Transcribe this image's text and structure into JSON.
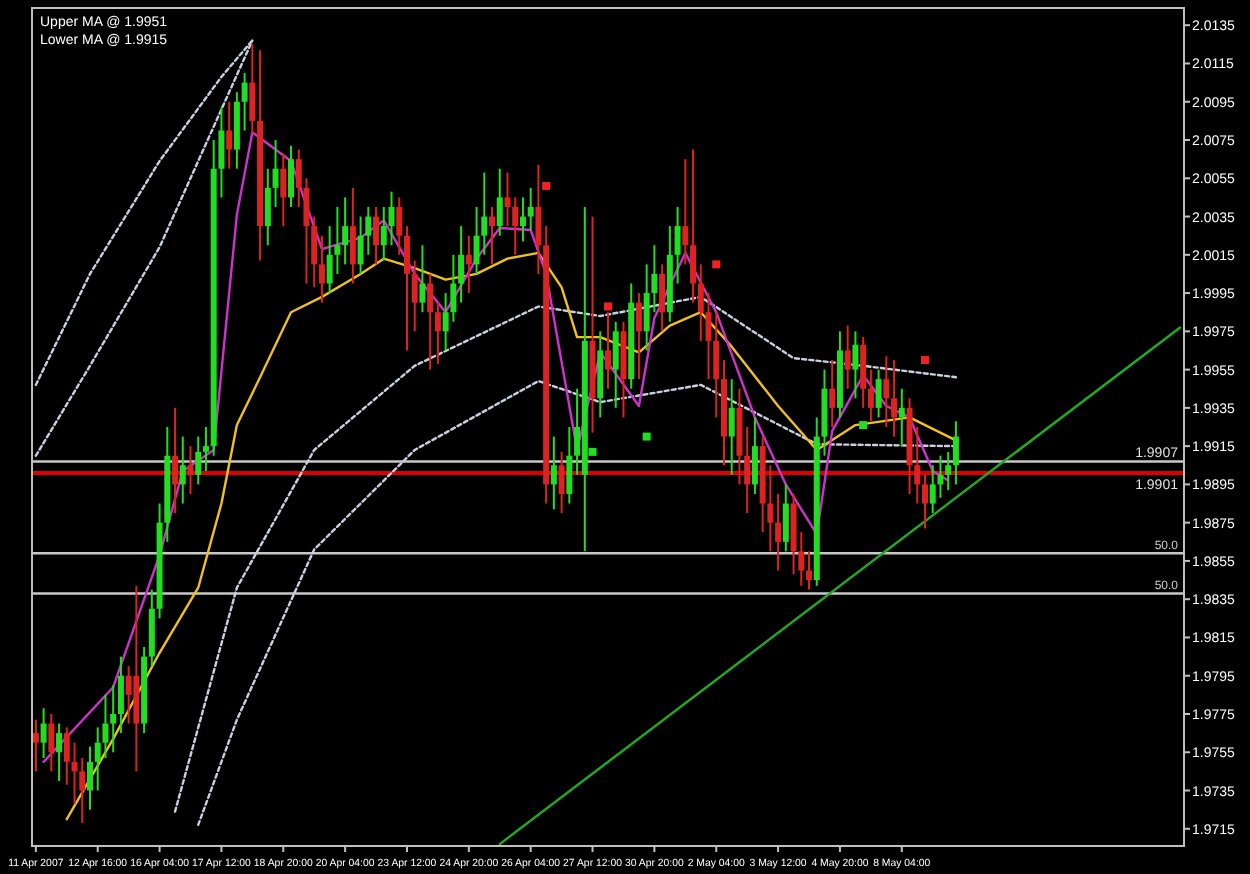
{
  "chart_data": {
    "type": "candlestick",
    "annotations": [
      "Upper MA @ 1.9951",
      "Lower MA @ 1.9915",
      {
        "text": "50.0",
        "y": 1.9859
      },
      {
        "text": "50.0",
        "y": 1.9838
      }
    ],
    "categories": [
      "11 Apr 2007",
      null,
      null,
      null,
      null,
      null,
      null,
      null,
      "12 Apr 16:00",
      null,
      null,
      null,
      null,
      null,
      null,
      null,
      "16 Apr 04:00",
      null,
      null,
      null,
      null,
      null,
      null,
      null,
      "17 Apr 12:00",
      null,
      null,
      null,
      null,
      null,
      null,
      null,
      "18 Apr 20:00",
      null,
      null,
      null,
      null,
      null,
      null,
      null,
      "20 Apr 04:00",
      null,
      null,
      null,
      null,
      null,
      null,
      null,
      "23 Apr 12:00",
      null,
      null,
      null,
      null,
      null,
      null,
      null,
      "24 Apr 20:00",
      null,
      null,
      null,
      null,
      null,
      null,
      null,
      "26 Apr 04:00",
      null,
      null,
      null,
      null,
      null,
      null,
      null,
      "27 Apr 12:00",
      null,
      null,
      null,
      null,
      null,
      null,
      null,
      "30 Apr 20:00",
      null,
      null,
      null,
      null,
      null,
      null,
      null,
      "2 May 04:00",
      null,
      null,
      null,
      null,
      null,
      null,
      null,
      "3 May 12:00",
      null,
      null,
      null,
      null,
      null,
      null,
      null,
      "4 May 20:00",
      null,
      null,
      null,
      null,
      null,
      null,
      null,
      "8 May 04:00",
      null,
      null,
      null,
      null,
      null,
      null,
      null,
      null,
      null,
      null,
      null,
      null,
      null,
      null,
      null,
      null,
      null,
      null,
      null,
      null,
      null,
      null,
      null,
      null,
      null,
      null,
      null,
      null,
      null,
      null,
      null,
      null,
      null,
      null,
      null,
      null
    ],
    "ohlc": [
      [
        1.9765,
        1.9772,
        1.9745,
        1.976
      ],
      [
        1.976,
        1.9778,
        1.9752,
        1.977
      ],
      [
        1.977,
        1.9775,
        1.9745,
        1.9755
      ],
      [
        1.9755,
        1.977,
        1.974,
        1.9765
      ],
      [
        1.9765,
        1.9768,
        1.9738,
        1.975
      ],
      [
        1.975,
        1.976,
        1.9728,
        1.9745
      ],
      [
        1.9745,
        1.9752,
        1.9718,
        1.9735
      ],
      [
        1.9735,
        1.9758,
        1.9725,
        1.975
      ],
      [
        1.975,
        1.9768,
        1.9735,
        1.976
      ],
      [
        1.976,
        1.9785,
        1.9752,
        1.977
      ],
      [
        1.977,
        1.979,
        1.9755,
        1.9775
      ],
      [
        1.9775,
        1.9805,
        1.9765,
        1.9795
      ],
      [
        1.9795,
        1.98,
        1.977,
        1.9785
      ],
      [
        1.9795,
        1.9842,
        1.9745,
        1.977
      ],
      [
        1.977,
        1.981,
        1.9765,
        1.9805
      ],
      [
        1.9805,
        1.984,
        1.98,
        1.983
      ],
      [
        1.983,
        1.9885,
        1.9825,
        1.9875
      ],
      [
        1.9875,
        1.9925,
        1.9865,
        1.991
      ],
      [
        1.991,
        1.9935,
        1.988,
        1.9895
      ],
      [
        1.9895,
        1.992,
        1.9885,
        1.9905
      ],
      [
        1.9905,
        1.9915,
        1.989,
        1.99
      ],
      [
        1.99,
        1.992,
        1.9895,
        1.9912
      ],
      [
        1.9912,
        1.9925,
        1.9902,
        1.9915
      ],
      [
        1.9915,
        2.0075,
        1.991,
        2.006
      ],
      [
        2.006,
        2.0092,
        2.0045,
        2.008
      ],
      [
        2.008,
        2.0095,
        2.006,
        2.007
      ],
      [
        2.007,
        2.01,
        2.006,
        2.0095
      ],
      [
        2.0095,
        2.011,
        2.008,
        2.0105
      ],
      [
        2.0105,
        2.0125,
        2.0078,
        2.0085
      ],
      [
        2.0085,
        2.0122,
        2.0012,
        2.003
      ],
      [
        2.003,
        2.006,
        2.002,
        2.005
      ],
      [
        2.005,
        2.0075,
        2.004,
        2.006
      ],
      [
        2.006,
        2.0068,
        2.003,
        2.0045
      ],
      [
        2.0045,
        2.0072,
        2.004,
        2.0065
      ],
      [
        2.0065,
        2.007,
        2.004,
        2.005
      ],
      [
        2.005,
        2.0055,
        2.0,
        2.003
      ],
      [
        2.003,
        2.0035,
        1.9998,
        2.001
      ],
      [
        2.001,
        2.0025,
        1.999,
        2.0
      ],
      [
        2.0,
        2.003,
        1.9995,
        2.0015
      ],
      [
        2.0015,
        2.004,
        2.0005,
        2.002
      ],
      [
        2.002,
        2.0045,
        2.001,
        2.003
      ],
      [
        2.003,
        2.005,
        2.0,
        2.001
      ],
      [
        2.001,
        2.0035,
        2.0005,
        2.0025
      ],
      [
        2.0025,
        2.004,
        2.0015,
        2.0035
      ],
      [
        2.0035,
        2.004,
        2.001,
        2.002
      ],
      [
        2.002,
        2.004,
        2.0012,
        2.003
      ],
      [
        2.003,
        2.0048,
        2.002,
        2.004
      ],
      [
        2.004,
        2.0045,
        2.0015,
        2.0025
      ],
      [
        2.0025,
        2.003,
        1.9965,
        2.0005
      ],
      [
        2.0005,
        2.0012,
        1.9975,
        1.999
      ],
      [
        1.999,
        2.002,
        1.9985,
        2.0
      ],
      [
        2.0,
        2.0005,
        1.9955,
        1.9985
      ],
      [
        1.9985,
        1.999,
        1.9958,
        1.9975
      ],
      [
        1.9975,
        1.9995,
        1.9965,
        1.9985
      ],
      [
        1.9985,
        2.0015,
        1.998,
        2.0
      ],
      [
        2.0,
        2.003,
        1.999,
        2.0015
      ],
      [
        2.0015,
        2.0025,
        1.9995,
        2.001
      ],
      [
        2.001,
        2.004,
        2.0005,
        2.0025
      ],
      [
        2.0025,
        2.0058,
        2.0015,
        2.0035
      ],
      [
        2.0035,
        2.004,
        2.001,
        2.003
      ],
      [
        2.003,
        2.006,
        2.0025,
        2.0045
      ],
      [
        2.0045,
        2.0058,
        2.003,
        2.004
      ],
      [
        2.004,
        2.0045,
        2.0015,
        2.003
      ],
      [
        2.003,
        2.0045,
        2.0022,
        2.0035
      ],
      [
        2.0035,
        2.005,
        2.0028,
        2.004
      ],
      [
        2.004,
        2.0062,
        2.0005,
        2.002
      ],
      [
        2.002,
        2.003,
        1.9885,
        1.9895
      ],
      [
        1.9895,
        1.992,
        1.9882,
        1.9905
      ],
      [
        1.9905,
        1.9912,
        1.988,
        1.989
      ],
      [
        1.989,
        1.9925,
        1.9885,
        1.991
      ],
      [
        1.991,
        1.9945,
        1.99,
        1.9925
      ],
      [
        1.99,
        2.004,
        1.986,
        1.997
      ],
      [
        1.997,
        2.0035,
        1.9922,
        1.994
      ],
      [
        1.994,
        1.9975,
        1.993,
        1.9965
      ],
      [
        1.9965,
        1.9985,
        1.9945,
        1.9955
      ],
      [
        1.9955,
        1.998,
        1.9935,
        1.9975
      ],
      [
        1.9975,
        1.998,
        1.993,
        1.995
      ],
      [
        1.995,
        2.0,
        1.9945,
        1.999
      ],
      [
        1.999,
        1.9995,
        1.995,
        1.9975
      ],
      [
        1.9975,
        2.001,
        1.9965,
        1.9995
      ],
      [
        1.9995,
        2.002,
        1.9985,
        2.0005
      ],
      [
        2.0005,
        2.001,
        1.9975,
        1.9985
      ],
      [
        1.9985,
        2.003,
        1.998,
        2.0015
      ],
      [
        2.0015,
        2.004,
        2.0,
        2.003
      ],
      [
        2.003,
        2.0065,
        2.001,
        2.002
      ],
      [
        2.002,
        2.007,
        1.999,
        2.0
      ],
      [
        2.0,
        2.001,
        1.997,
        1.9985
      ],
      [
        1.9985,
        1.9995,
        1.995,
        1.997
      ],
      [
        1.997,
        1.9985,
        1.993,
        1.995
      ],
      [
        1.995,
        1.996,
        1.9905,
        1.992
      ],
      [
        1.992,
        1.995,
        1.99,
        1.9935
      ],
      [
        1.9935,
        1.9945,
        1.9895,
        1.991
      ],
      [
        1.991,
        1.9925,
        1.988,
        1.9895
      ],
      [
        1.9895,
        1.993,
        1.989,
        1.9915
      ],
      [
        1.9915,
        1.992,
        1.987,
        1.9885
      ],
      [
        1.9885,
        1.9905,
        1.986,
        1.9875
      ],
      [
        1.9875,
        1.989,
        1.985,
        1.9865
      ],
      [
        1.9865,
        1.9895,
        1.986,
        1.9885
      ],
      [
        1.9885,
        1.989,
        1.9848,
        1.986
      ],
      [
        1.986,
        1.987,
        1.9842,
        1.985
      ],
      [
        1.985,
        1.986,
        1.984,
        1.9845
      ],
      [
        1.9845,
        1.993,
        1.9842,
        1.992
      ],
      [
        1.992,
        1.9955,
        1.991,
        1.9945
      ],
      [
        1.9945,
        1.996,
        1.9925,
        1.9935
      ],
      [
        1.9935,
        1.9975,
        1.993,
        1.9965
      ],
      [
        1.9965,
        1.9978,
        1.9945,
        1.9955
      ],
      [
        1.9955,
        1.9975,
        1.994,
        1.9968
      ],
      [
        1.9968,
        1.9972,
        1.9935,
        1.9945
      ],
      [
        1.9945,
        1.9955,
        1.9928,
        1.9935
      ],
      [
        1.9935,
        1.9955,
        1.993,
        1.995
      ],
      [
        1.995,
        1.9962,
        1.9925,
        1.994
      ],
      [
        1.994,
        1.996,
        1.992,
        1.993
      ],
      [
        1.993,
        1.9945,
        1.9915,
        1.9935
      ],
      [
        1.9935,
        1.994,
        1.989,
        1.9905
      ],
      [
        1.9905,
        1.9925,
        1.9885,
        1.9895
      ],
      [
        1.9895,
        1.99,
        1.9872,
        1.9885
      ],
      [
        1.9885,
        1.9905,
        1.988,
        1.9895
      ],
      [
        1.9895,
        1.991,
        1.9888,
        1.99
      ],
      [
        1.99,
        1.9912,
        1.9892,
        1.9905
      ],
      [
        1.9905,
        1.9928,
        1.9895,
        1.992
      ],
      null,
      null,
      null,
      null,
      null,
      null,
      null,
      null,
      null,
      null,
      null,
      null,
      null,
      null,
      null,
      null,
      null,
      null,
      null,
      null,
      null,
      null,
      null,
      null,
      null,
      null,
      null,
      null,
      null
    ],
    "colors": [
      "#dd2222",
      "#22dd22",
      "#dd2222",
      "#22dd22",
      "#dd2222",
      "#dd2222",
      "#dd2222",
      "#22dd22",
      "#22dd22",
      "#22dd22",
      "#22dd22",
      "#22dd22",
      "#dd2222",
      "#dd2222",
      "#22dd22",
      "#22dd22",
      "#22dd22",
      "#22dd22",
      "#dd2222",
      "#22dd22",
      "#dd2222",
      "#22dd22",
      "#22dd22",
      "#22dd22",
      "#22dd22",
      "#dd2222",
      "#22dd22",
      "#22dd22",
      "#dd2222",
      "#dd2222",
      "#22dd22",
      "#22dd22",
      "#dd2222",
      "#22dd22",
      "#dd2222",
      "#dd2222",
      "#dd2222",
      "#dd2222",
      "#22dd22",
      "#22dd22",
      "#22dd22",
      "#dd2222",
      "#22dd22",
      "#22dd22",
      "#dd2222",
      "#22dd22",
      "#22dd22",
      "#dd2222",
      "#dd2222",
      "#dd2222",
      "#22dd22",
      "#dd2222",
      "#dd2222",
      "#22dd22",
      "#22dd22",
      "#22dd22",
      "#dd2222",
      "#22dd22",
      "#22dd22",
      "#dd2222",
      "#22dd22",
      "#dd2222",
      "#dd2222",
      "#22dd22",
      "#22dd22",
      "#dd2222",
      "#dd2222",
      "#22dd22",
      "#dd2222",
      "#22dd22",
      "#22dd22",
      "#22dd22",
      "#dd2222",
      "#22dd22",
      "#dd2222",
      "#22dd22",
      "#dd2222",
      "#22dd22",
      "#dd2222",
      "#22dd22",
      "#22dd22",
      "#dd2222",
      "#22dd22",
      "#22dd22",
      "#dd2222",
      "#dd2222",
      "#dd2222",
      "#dd2222",
      "#dd2222",
      "#dd2222",
      "#22dd22",
      "#dd2222",
      "#dd2222",
      "#22dd22",
      "#dd2222",
      "#dd2222",
      "#dd2222",
      "#22dd22",
      "#dd2222",
      "#dd2222",
      "#dd2222",
      "#22dd22",
      "#22dd22",
      "#dd2222",
      "#22dd22",
      "#dd2222",
      "#22dd22",
      "#dd2222",
      "#dd2222",
      "#22dd22",
      "#dd2222",
      "#dd2222",
      "#22dd22",
      "#dd2222",
      "#dd2222",
      "#dd2222",
      "#22dd22",
      "#22dd22",
      "#22dd22",
      "#22dd22",
      null,
      null,
      null,
      null,
      null,
      null,
      null,
      null,
      null,
      null,
      null,
      null,
      null,
      null,
      null,
      null,
      null,
      null,
      null,
      null,
      null,
      null,
      null,
      null,
      null,
      null,
      null,
      null,
      null
    ],
    "series": [
      {
        "type": "line",
        "color": "#c8d0e0",
        "line_style": "dotted",
        "values": [
          1.9947,
          null,
          null,
          null,
          null,
          null,
          null,
          2.0005,
          null,
          null,
          null,
          null,
          null,
          null,
          null,
          null,
          2.0064,
          null,
          null,
          null,
          null,
          null,
          null,
          null,
          2.0108,
          null,
          null,
          null,
          2.0127,
          null,
          null,
          null,
          null,
          null,
          null,
          null,
          null,
          null,
          null,
          null,
          null,
          null,
          null,
          null,
          null,
          null,
          null,
          null,
          null,
          null,
          null,
          null,
          null,
          null,
          null,
          null,
          null,
          null,
          null,
          null,
          null,
          null,
          null,
          null,
          null,
          null,
          null,
          null,
          null,
          null,
          null,
          null,
          null,
          null,
          null,
          null,
          null,
          null,
          null,
          null,
          null,
          null,
          null,
          null,
          null,
          null,
          null,
          null,
          null,
          null,
          null,
          null,
          null,
          null,
          null,
          null,
          null,
          null,
          null,
          null,
          null,
          null,
          null,
          null,
          null,
          null,
          null,
          null,
          null,
          null,
          null,
          null,
          null,
          null,
          null,
          null,
          null,
          null,
          null,
          null,
          null,
          null,
          null,
          null,
          null,
          null,
          null,
          null,
          null,
          null,
          null,
          null,
          null,
          null,
          null,
          null,
          null,
          null,
          null,
          null,
          null,
          null,
          null,
          null,
          null,
          null,
          null,
          null,
          null
        ]
      },
      {
        "type": "line",
        "color": "#c8d0e0",
        "line_style": "dotted",
        "values": [
          1.991,
          null,
          null,
          null,
          null,
          null,
          null,
          1.9957,
          null,
          null,
          null,
          null,
          null,
          null,
          null,
          null,
          2.0019,
          null,
          null,
          null,
          null,
          null,
          null,
          null,
          2.0091,
          null,
          null,
          null,
          2.0127,
          null,
          null,
          null,
          null,
          null,
          null,
          null,
          null,
          null,
          null,
          null,
          null,
          null,
          null,
          null,
          null,
          null,
          null,
          null,
          null,
          null,
          null,
          null,
          null,
          null,
          null,
          null,
          null,
          null,
          null,
          null,
          null,
          null,
          null,
          null,
          null,
          null,
          null,
          null,
          null,
          null,
          null,
          null,
          null,
          null,
          null,
          null,
          null,
          null,
          null,
          null,
          null,
          null,
          null,
          null,
          null,
          null,
          null,
          null,
          null,
          null,
          null,
          null,
          null,
          null,
          null,
          null,
          null,
          null,
          null,
          null,
          null,
          null,
          null,
          null,
          null,
          null,
          null,
          null,
          null,
          null,
          null,
          null,
          null,
          null,
          null,
          null,
          null,
          null,
          null,
          null,
          null,
          null,
          null,
          null,
          null,
          null,
          null,
          null,
          null,
          null,
          null,
          null,
          null,
          null,
          null,
          null,
          null,
          null,
          null,
          null,
          null,
          null,
          null,
          null,
          null,
          null,
          null,
          null,
          null
        ]
      },
      {
        "type": "line",
        "color": "#c8d0e0",
        "line_style": "dotted",
        "values": [
          null,
          null,
          null,
          null,
          null,
          null,
          null,
          null,
          null,
          null,
          null,
          null,
          null,
          null,
          null,
          null,
          null,
          null,
          1.9724,
          null,
          null,
          null,
          null,
          null,
          null,
          null,
          1.9841,
          null,
          null,
          null,
          null,
          null,
          null,
          null,
          null,
          null,
          1.9913,
          null,
          null,
          null,
          null,
          null,
          null,
          null,
          null,
          null,
          null,
          null,
          null,
          1.9957,
          null,
          null,
          null,
          null,
          null,
          null,
          null,
          null,
          null,
          null,
          null,
          null,
          null,
          null,
          null,
          1.9988,
          null,
          null,
          null,
          null,
          null,
          null,
          null,
          1.9983,
          null,
          null,
          null,
          null,
          null,
          null,
          null,
          null,
          null,
          null,
          null,
          null,
          1.9993,
          null,
          null,
          null,
          null,
          null,
          null,
          null,
          null,
          null,
          null,
          null,
          1.9961,
          null,
          null,
          null,
          null,
          null,
          null,
          null,
          null,
          1.9957,
          null,
          null,
          null,
          null,
          null,
          null,
          null,
          null,
          null,
          null,
          null,
          1.9951,
          null,
          null,
          null,
          null,
          null,
          null,
          null,
          null,
          null,
          null,
          null,
          null,
          null,
          null,
          null,
          null,
          null,
          null,
          null,
          null,
          null,
          null,
          null,
          null,
          null,
          null,
          null,
          null,
          null
        ]
      },
      {
        "type": "line",
        "color": "#c8d0e0",
        "line_style": "dotted",
        "values": [
          null,
          null,
          null,
          null,
          null,
          null,
          null,
          null,
          null,
          null,
          null,
          null,
          null,
          null,
          null,
          null,
          null,
          null,
          null,
          null,
          null,
          1.9717,
          null,
          null,
          null,
          null,
          1.9772,
          null,
          null,
          null,
          null,
          null,
          null,
          null,
          null,
          null,
          1.9861,
          null,
          null,
          null,
          null,
          null,
          null,
          null,
          null,
          null,
          null,
          null,
          null,
          1.9913,
          null,
          null,
          null,
          null,
          null,
          null,
          null,
          null,
          null,
          null,
          null,
          null,
          null,
          null,
          null,
          1.9949,
          null,
          null,
          null,
          null,
          null,
          null,
          null,
          1.9938,
          null,
          null,
          null,
          null,
          null,
          null,
          null,
          null,
          null,
          null,
          null,
          null,
          1.9947,
          null,
          null,
          null,
          null,
          null,
          null,
          null,
          null,
          null,
          null,
          null,
          null,
          null,
          null,
          1.9916,
          null,
          null,
          null,
          null,
          null,
          null,
          null,
          null,
          null,
          null,
          null,
          null,
          null,
          null,
          null,
          null,
          null,
          1.9915,
          null,
          null,
          null,
          null,
          null,
          null,
          null,
          null,
          null,
          null,
          null,
          null,
          null,
          null,
          null,
          null,
          null,
          null,
          null,
          null,
          null,
          null,
          null,
          null,
          null,
          null,
          null,
          null,
          null
        ]
      },
      {
        "type": "line",
        "color": "#f0c020",
        "line_style": "solid",
        "values": [
          null,
          null,
          null,
          null,
          1.972,
          null,
          null,
          null,
          null,
          null,
          1.9762,
          null,
          null,
          null,
          null,
          null,
          1.9807,
          null,
          null,
          null,
          null,
          1.9841,
          null,
          null,
          1.9885,
          null,
          1.9926,
          null,
          null,
          1.9951,
          null,
          null,
          null,
          1.9985,
          null,
          null,
          null,
          1.9993,
          null,
          null,
          null,
          null,
          2.0005,
          null,
          null,
          2.0013,
          null,
          null,
          null,
          2.0008,
          null,
          null,
          null,
          2.0002,
          null,
          null,
          null,
          2.0005,
          null,
          null,
          null,
          2.0013,
          null,
          null,
          null,
          2.0016,
          null,
          null,
          1.9998,
          null,
          1.9972,
          null,
          null,
          1.9972,
          null,
          null,
          null,
          null,
          1.9964,
          null,
          null,
          null,
          1.9978,
          null,
          null,
          null,
          1.9985,
          null,
          null,
          null,
          1.9967,
          null,
          null,
          null,
          null,
          null,
          1.9936,
          null,
          null,
          null,
          null,
          1.9913,
          null,
          null,
          null,
          null,
          1.9926,
          null,
          null,
          null,
          null,
          null,
          null,
          1.993,
          null,
          null,
          null,
          null,
          null,
          1.9918,
          null,
          null,
          null,
          null,
          null,
          null,
          null,
          null,
          null,
          null,
          null,
          null,
          null,
          null,
          null,
          null,
          null,
          null,
          null,
          null,
          null,
          null,
          null,
          null,
          null,
          null,
          null,
          null,
          null
        ]
      },
      {
        "type": "line",
        "color": "#cc33cc",
        "line_style": "solid",
        "values": [
          null,
          1.975,
          null,
          null,
          null,
          null,
          null,
          null,
          null,
          null,
          1.9789,
          null,
          null,
          null,
          null,
          null,
          1.9858,
          null,
          null,
          1.9902,
          null,
          null,
          null,
          1.9913,
          null,
          null,
          2.0036,
          null,
          2.0079,
          null,
          null,
          null,
          null,
          2.0064,
          null,
          null,
          null,
          2.0018,
          null,
          null,
          null,
          null,
          2.0024,
          null,
          null,
          2.0033,
          null,
          null,
          null,
          2.0005,
          null,
          null,
          null,
          1.9985,
          null,
          null,
          null,
          2.0013,
          null,
          null,
          2.0029,
          null,
          null,
          null,
          2.0028,
          null,
          2.0005,
          null,
          null,
          null,
          1.9913,
          null,
          null,
          1.9964,
          null,
          null,
          null,
          null,
          1.9936,
          null,
          1.9982,
          null,
          null,
          null,
          2.0016,
          null,
          null,
          null,
          1.9985,
          null,
          null,
          null,
          null,
          1.993,
          null,
          null,
          null,
          1.9895,
          null,
          null,
          null,
          1.9869,
          null,
          1.9923,
          null,
          null,
          null,
          1.9952,
          null,
          null,
          1.9936,
          null,
          null,
          1.993,
          null,
          null,
          1.9902,
          null,
          1.9897,
          null,
          null,
          null,
          null,
          null,
          null,
          null,
          null,
          null,
          null,
          null,
          null,
          null,
          null,
          null,
          null,
          null,
          null,
          null,
          null,
          null,
          null,
          null,
          null,
          null,
          null,
          null,
          null,
          null,
          null
        ]
      },
      {
        "type": "line",
        "color": "#22aa22",
        "line_style": "solid",
        "values": [
          null,
          null,
          null,
          null,
          null,
          null,
          null,
          null,
          null,
          null,
          null,
          null,
          null,
          null,
          null,
          null,
          null,
          null,
          null,
          null,
          null,
          null,
          null,
          null,
          null,
          null,
          null,
          null,
          null,
          null,
          null,
          null,
          null,
          null,
          null,
          null,
          null,
          null,
          null,
          null,
          null,
          null,
          null,
          null,
          null,
          null,
          null,
          null,
          null,
          null,
          null,
          null,
          null,
          null,
          null,
          null,
          null,
          null,
          null,
          null,
          1.9707,
          null,
          null,
          null,
          null,
          null,
          null,
          null,
          null,
          null,
          null,
          null,
          null,
          null,
          null,
          null,
          null,
          null,
          null,
          null,
          null,
          null,
          null,
          null,
          null,
          null,
          null,
          null,
          null,
          null,
          null,
          null,
          null,
          null,
          null,
          null,
          null,
          null,
          null,
          null,
          null,
          null,
          null,
          null,
          null,
          null,
          null,
          null,
          null,
          null,
          null,
          null,
          null,
          null,
          null,
          null,
          null,
          null,
          null,
          null,
          null,
          null,
          null,
          null,
          null,
          null,
          null,
          null,
          null,
          null,
          null,
          null,
          null,
          null,
          null,
          null,
          null,
          null,
          null,
          null,
          null,
          null,
          null,
          null,
          null,
          null,
          null,
          null,
          1.9977
        ]
      },
      {
        "type": "scatter",
        "color": "#ee2222",
        "marker": "square",
        "values": [
          null,
          null,
          null,
          null,
          null,
          null,
          null,
          null,
          null,
          null,
          null,
          null,
          null,
          null,
          null,
          null,
          null,
          null,
          null,
          null,
          null,
          null,
          null,
          null,
          null,
          null,
          null,
          null,
          null,
          null,
          null,
          null,
          null,
          null,
          null,
          null,
          null,
          null,
          null,
          null,
          null,
          null,
          null,
          null,
          null,
          null,
          null,
          null,
          null,
          null,
          null,
          null,
          null,
          null,
          null,
          null,
          null,
          null,
          null,
          null,
          null,
          null,
          null,
          null,
          null,
          null,
          2.0051,
          null,
          null,
          null,
          null,
          null,
          null,
          null,
          1.9988,
          null,
          null,
          null,
          null,
          null,
          null,
          null,
          null,
          null,
          null,
          null,
          null,
          null,
          2.001,
          null,
          null,
          null,
          null,
          null,
          null,
          null,
          null,
          null,
          null,
          null,
          null,
          null,
          null,
          null,
          null,
          null,
          null,
          null,
          null,
          null,
          null,
          null,
          null,
          null,
          null,
          1.996,
          null,
          null,
          null,
          null,
          null,
          null,
          null,
          null,
          null,
          null,
          null,
          null,
          null,
          null,
          null,
          null,
          null,
          null,
          null,
          null,
          null,
          null,
          null,
          null,
          null,
          null,
          null,
          null,
          null,
          null,
          null,
          null,
          null
        ]
      },
      {
        "type": "scatter",
        "color": "#22dd22",
        "marker": "square",
        "values": [
          null,
          null,
          null,
          null,
          null,
          null,
          null,
          null,
          null,
          null,
          null,
          null,
          null,
          null,
          null,
          null,
          null,
          null,
          null,
          null,
          null,
          null,
          null,
          null,
          null,
          null,
          null,
          null,
          null,
          null,
          null,
          null,
          null,
          null,
          null,
          null,
          null,
          null,
          null,
          null,
          null,
          null,
          null,
          null,
          null,
          null,
          null,
          null,
          null,
          null,
          null,
          null,
          null,
          null,
          null,
          null,
          null,
          null,
          null,
          null,
          null,
          null,
          null,
          null,
          null,
          null,
          null,
          null,
          null,
          null,
          null,
          null,
          1.9912,
          null,
          null,
          null,
          null,
          null,
          null,
          1.992,
          null,
          null,
          null,
          null,
          null,
          null,
          null,
          null,
          null,
          null,
          null,
          null,
          null,
          null,
          null,
          null,
          null,
          null,
          null,
          null,
          null,
          null,
          null,
          null,
          null,
          null,
          null,
          1.9926,
          null,
          null,
          null,
          null,
          null,
          null,
          null,
          null,
          null,
          null,
          null,
          null,
          null,
          null,
          null,
          null,
          null,
          null,
          null,
          null,
          null,
          null,
          null,
          null,
          null,
          null,
          null,
          null,
          null,
          null,
          null,
          null,
          null,
          null,
          null,
          null,
          null,
          null,
          null,
          null,
          null
        ]
      }
    ],
    "ref_lines": [
      {
        "axis": "y",
        "value": 1.9907,
        "label": "1.9907",
        "color": "#c8c8c8"
      },
      {
        "axis": "y",
        "value": 1.9901,
        "label": "1.9901",
        "color": "#dd0000"
      },
      {
        "axis": "y",
        "value": 1.9859,
        "color": "#c8c8c8"
      },
      {
        "axis": "y",
        "value": 1.9838,
        "color": "#c8c8c8"
      }
    ],
    "ylim": [
      1.9706,
      2.0144
    ],
    "yticks": [
      1.9715,
      1.9735,
      1.9755,
      1.9775,
      1.9795,
      1.9815,
      1.9835,
      1.9855,
      1.9875,
      1.9895,
      1.9915,
      1.9935,
      1.9955,
      1.9975,
      1.9995,
      2.0015,
      2.0035,
      2.0055,
      2.0075,
      2.0095,
      2.0115,
      2.0135
    ]
  }
}
